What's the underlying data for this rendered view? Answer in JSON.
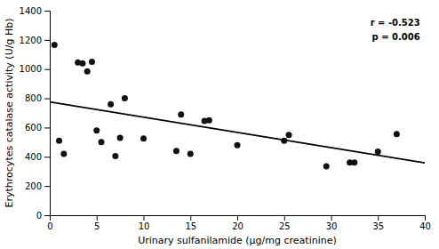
{
  "chart_data": {
    "type": "scatter",
    "x_label": "Urinary sulfanilamide (μg/mg creatinine)",
    "y_label": "Erythrocytes catalase activity (U/g Hb)",
    "series": [
      {
        "type": "scatter",
        "color": "#111111",
        "x": [
          0.5,
          1.0,
          1.5,
          3.0,
          3.5,
          4.0,
          4.5,
          5.0,
          5.5,
          6.5,
          7.0,
          7.5,
          8.0,
          10.0,
          13.5,
          14.0,
          15.0,
          16.5,
          17.0,
          20.0,
          25.0,
          25.5,
          29.5,
          32.0,
          32.5,
          35.0,
          37.0
        ],
        "values": [
          1165,
          510,
          420,
          1045,
          1040,
          985,
          1050,
          580,
          500,
          760,
          405,
          530,
          800,
          525,
          440,
          690,
          420,
          645,
          650,
          480,
          510,
          550,
          335,
          360,
          360,
          435,
          555
        ]
      },
      {
        "type": "line",
        "color": "#000000",
        "x": [
          0,
          40
        ],
        "values": [
          775,
          358
        ]
      }
    ],
    "annotations": [
      {
        "text": "r = -0.523",
        "x": 39.5,
        "y": 1340
      },
      {
        "text": "p = 0.006",
        "x": 39.5,
        "y": 1240
      }
    ],
    "xlim": [
      0,
      40
    ],
    "ylim": [
      0,
      1400
    ],
    "xticks": [
      0,
      5,
      10,
      15,
      20,
      25,
      30,
      35,
      40
    ],
    "yticks": [
      0,
      200,
      400,
      600,
      800,
      1000,
      1200,
      1400
    ],
    "grid": false
  }
}
